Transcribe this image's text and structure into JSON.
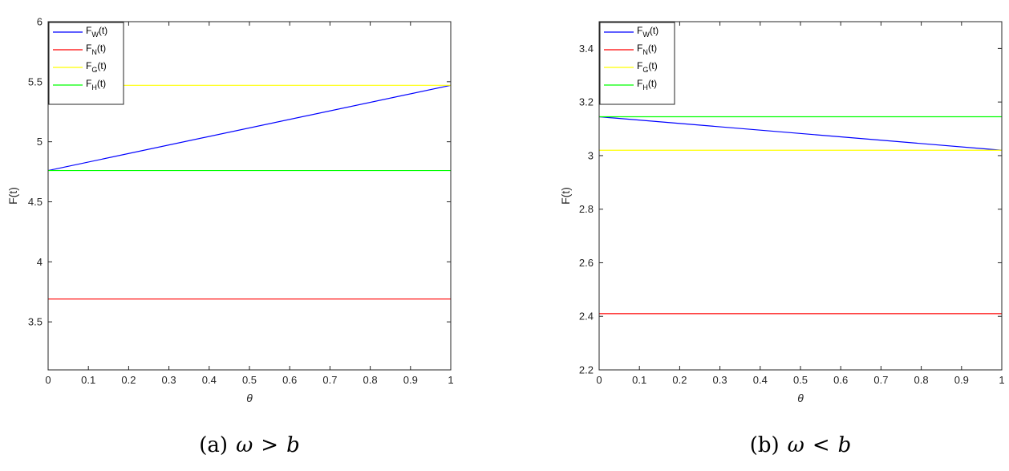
{
  "chart_data": [
    {
      "type": "line",
      "caption": {
        "prefix": "(a)",
        "lhs": "ω",
        "op": ">",
        "rhs": "b"
      },
      "xlabel": "θ",
      "ylabel": "F(t)",
      "xlim": [
        0,
        1
      ],
      "ylim": [
        3.1,
        6
      ],
      "xticks": [
        "0",
        "0.1",
        "0.2",
        "0.3",
        "0.4",
        "0.5",
        "0.6",
        "0.7",
        "0.8",
        "0.9",
        "1"
      ],
      "yticks": [
        "3.5",
        "4",
        "4.5",
        "5",
        "5.5",
        "6"
      ],
      "legend_position": "top-left",
      "series": [
        {
          "name": "F",
          "sub": "W",
          "suffix": "(t)",
          "color": "#0000ff",
          "x": [
            0,
            1
          ],
          "y": [
            4.76,
            5.47
          ]
        },
        {
          "name": "F",
          "sub": "N",
          "suffix": "(t)",
          "color": "#ff0000",
          "x": [
            0,
            1
          ],
          "y": [
            3.69,
            3.69
          ]
        },
        {
          "name": "F",
          "sub": "G",
          "suffix": "(t)",
          "color": "#ffff00",
          "x": [
            0,
            1
          ],
          "y": [
            5.47,
            5.47
          ]
        },
        {
          "name": "F",
          "sub": "H",
          "suffix": "(t)",
          "color": "#00ff00",
          "x": [
            0,
            1
          ],
          "y": [
            4.76,
            4.76
          ]
        }
      ]
    },
    {
      "type": "line",
      "caption": {
        "prefix": "(b)",
        "lhs": "ω",
        "op": "<",
        "rhs": "b"
      },
      "xlabel": "θ",
      "ylabel": "F(t)",
      "xlim": [
        0,
        1
      ],
      "ylim": [
        2.2,
        3.5
      ],
      "xticks": [
        "0",
        "0.1",
        "0.2",
        "0.3",
        "0.4",
        "0.5",
        "0.6",
        "0.7",
        "0.8",
        "0.9",
        "1"
      ],
      "yticks": [
        "2.2",
        "2.4",
        "2.6",
        "2.8",
        "3",
        "3.2",
        "3.4"
      ],
      "legend_position": "top-left",
      "series": [
        {
          "name": "F",
          "sub": "W",
          "suffix": "(t)",
          "color": "#0000ff",
          "x": [
            0,
            1
          ],
          "y": [
            3.145,
            3.02
          ]
        },
        {
          "name": "F",
          "sub": "N",
          "suffix": "(t)",
          "color": "#ff0000",
          "x": [
            0,
            1
          ],
          "y": [
            2.41,
            2.41
          ]
        },
        {
          "name": "F",
          "sub": "G",
          "suffix": "(t)",
          "color": "#ffff00",
          "x": [
            0,
            1
          ],
          "y": [
            3.02,
            3.02
          ]
        },
        {
          "name": "F",
          "sub": "H",
          "suffix": "(t)",
          "color": "#00ff00",
          "x": [
            0,
            1
          ],
          "y": [
            3.145,
            3.145
          ]
        }
      ]
    }
  ]
}
